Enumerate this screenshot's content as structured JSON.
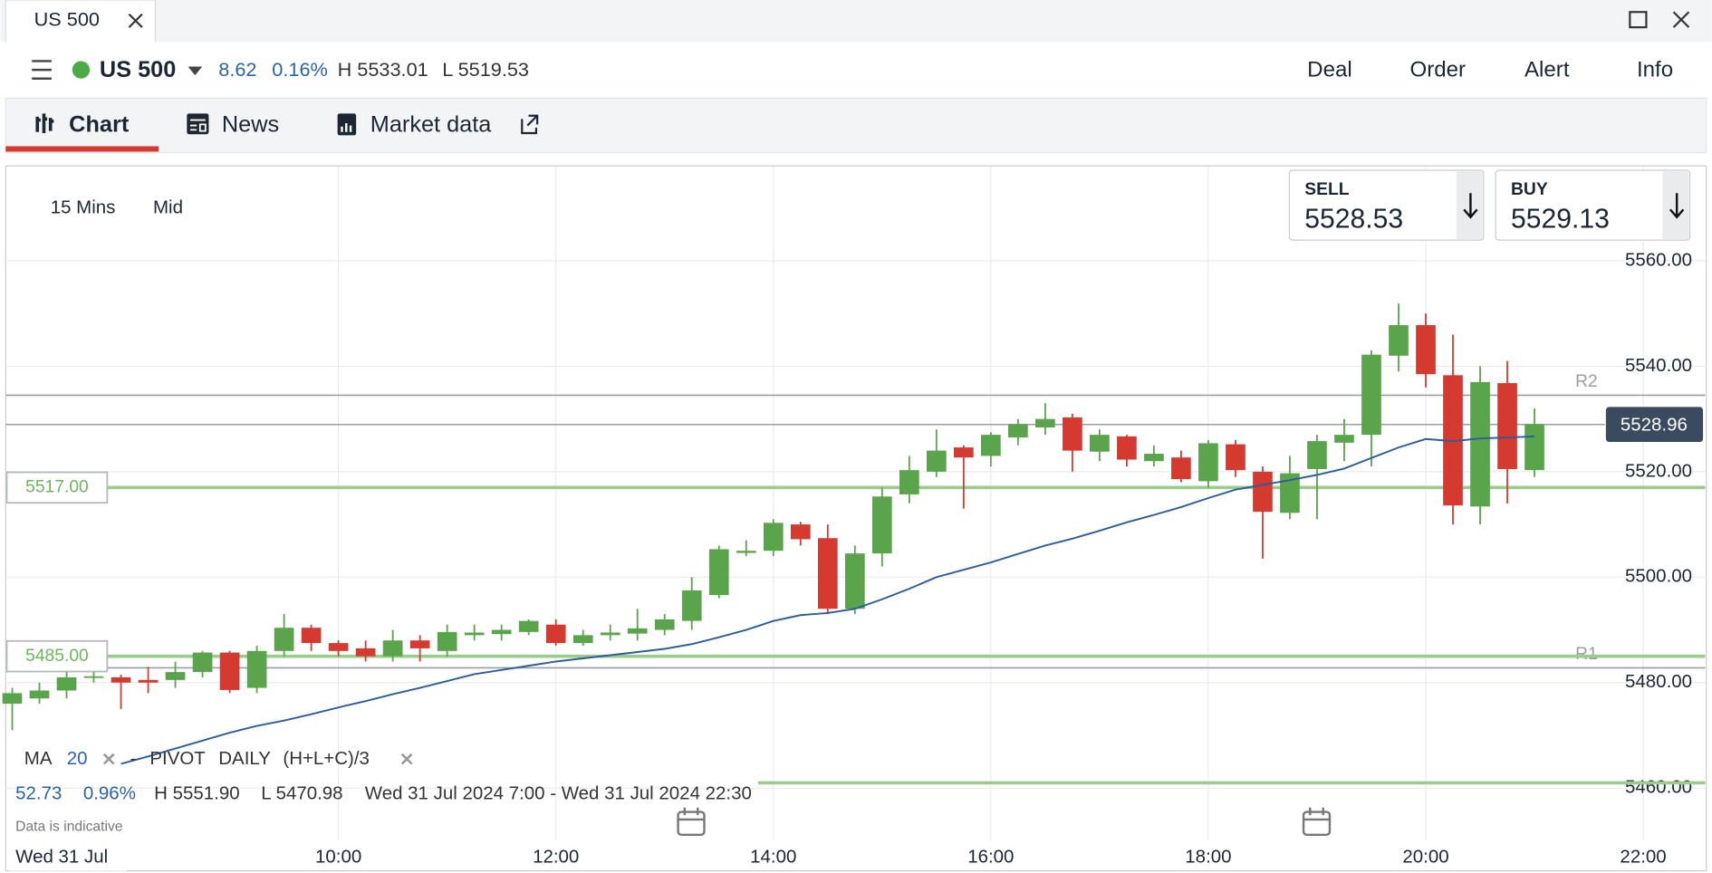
{
  "tab": {
    "title": "US 500"
  },
  "header": {
    "instrument": "US 500",
    "change": "8.62",
    "change_pct": "0.16%",
    "high": "H 5533.01",
    "low": "L 5519.53",
    "actions": [
      "Deal",
      "Order",
      "Alert",
      "Info"
    ]
  },
  "nav": {
    "tabs": [
      "Chart",
      "News",
      "Market data"
    ]
  },
  "toolbar": {
    "interval": "15 Mins",
    "price_type": "Mid"
  },
  "sell": {
    "label": "SELL",
    "price": "5528.53"
  },
  "buy": {
    "label": "BUY",
    "price": "5529.13"
  },
  "indicators": {
    "ma_name": "MA",
    "ma_period": "20",
    "pivot_dash": "-",
    "pivot_name": "PIVOT",
    "pivot_period": "DAILY",
    "pivot_formula": "(H+L+C)/3"
  },
  "summary": {
    "change": "52.73",
    "change_pct": "0.96%",
    "high": "H 5551.90",
    "low": "L 5470.98",
    "range": "Wed 31 Jul 2024 7:00 - Wed 31 Jul 2024 22:30",
    "note": "Data is indicative",
    "date": "Wed 31 Jul"
  },
  "chart_data": {
    "type": "candlestick",
    "x": [
      7,
      7.25,
      7.5,
      7.75,
      8,
      8.25,
      8.5,
      8.75,
      9,
      9.25,
      9.5,
      9.75,
      10,
      10.25,
      10.5,
      10.75,
      11,
      11.25,
      11.5,
      11.75,
      12,
      12.25,
      12.5,
      12.75,
      13,
      13.25,
      13.5,
      13.75,
      14,
      14.25,
      14.5,
      14.75,
      15,
      15.25,
      15.5,
      15.75,
      16,
      16.25,
      16.5,
      16.75,
      17,
      17.25,
      17.5,
      17.75,
      18,
      18.25,
      18.5,
      18.75,
      19,
      19.25,
      19.5,
      19.75,
      20,
      20.25,
      20.5,
      20.75,
      21
    ],
    "open": [
      5476,
      5477,
      5478.5,
      5481,
      5481,
      5480.5,
      5480.5,
      5482,
      5485.7,
      5479,
      5486,
      5490.4,
      5487.5,
      5486.5,
      5485,
      5488,
      5486,
      5489,
      5489.2,
      5489.6,
      5491,
      5487.5,
      5489,
      5489.3,
      5490,
      5491.7,
      5496.6,
      5504.6,
      5505,
      5510,
      5507.4,
      5494,
      5504.5,
      5515.7,
      5520,
      5524.6,
      5523,
      5526.5,
      5528.4,
      5530.3,
      5523.8,
      5526.7,
      5522,
      5522.7,
      5518.2,
      5525.2,
      5520,
      5512.2,
      5520.5,
      5525.5,
      5527,
      5542,
      5547.8,
      5538.3,
      5513.4,
      5536.8,
      5520.3
    ],
    "high": [
      5479,
      5480,
      5482,
      5482,
      5481.5,
      5483,
      5484,
      5486,
      5486,
      5487,
      5493,
      5491,
      5488,
      5488,
      5490,
      5489,
      5491,
      5491,
      5491,
      5492,
      5492,
      5490,
      5491,
      5494,
      5493,
      5500,
      5506,
      5507,
      5511,
      5510.5,
      5510,
      5506,
      5517,
      5523,
      5528,
      5525,
      5527.5,
      5530,
      5533.01,
      5531,
      5528,
      5527,
      5525,
      5524,
      5526,
      5526,
      5521,
      5523,
      5527,
      5530,
      5543,
      5551.9,
      5550,
      5546,
      5540,
      5541,
      5532
    ],
    "low": [
      5470.98,
      5476,
      5477,
      5480,
      5475,
      5478,
      5479,
      5481,
      5478,
      5478,
      5485,
      5486,
      5485,
      5484,
      5484,
      5484,
      5485,
      5488,
      5488,
      5489,
      5487,
      5487,
      5488,
      5488,
      5489,
      5490,
      5496,
      5504,
      5504,
      5506,
      5493,
      5493,
      5502,
      5514,
      5519,
      5513,
      5521,
      5525,
      5527,
      5520,
      5522,
      5521,
      5521,
      5518,
      5517,
      5519,
      5503.5,
      5511,
      5511,
      5522,
      5521,
      5539,
      5536,
      5510,
      5510,
      5514,
      5519
    ],
    "close": [
      5478,
      5478.5,
      5481,
      5481.2,
      5480,
      5480,
      5482,
      5485.7,
      5478.6,
      5486,
      5490.4,
      5487.5,
      5486,
      5485,
      5488,
      5486.5,
      5489.6,
      5489.5,
      5490,
      5491.7,
      5487.5,
      5489,
      5489.5,
      5490.3,
      5492,
      5497.5,
      5505.3,
      5505,
      5510.3,
      5507.2,
      5494,
      5504.5,
      5515.3,
      5520.3,
      5524,
      5522.7,
      5527,
      5529,
      5530,
      5524,
      5527,
      5522.3,
      5523.4,
      5518.6,
      5525.4,
      5520.3,
      5512.4,
      5519.7,
      5525.8,
      5527,
      5542.2,
      5547.8,
      5538.5,
      5513.6,
      5537,
      5520.5,
      5529
    ],
    "up_color": "#5aa44b",
    "down_color": "#d53a31",
    "series": [
      {
        "name": "MA",
        "color": "#2f5d95",
        "values": [
          null,
          null,
          null,
          null,
          5464.6,
          5466,
          5467.5,
          5469,
          5470.5,
          5471.8,
          5472.8,
          5474,
          5475.3,
          5476.5,
          5477.8,
          5479,
          5480.3,
          5481.6,
          5482.4,
          5483.2,
          5484,
          5484.6,
          5485.2,
          5485.8,
          5486.4,
          5487.3,
          5488.6,
          5490,
          5491.7,
          5492.8,
          5493.2,
          5494,
          5495.8,
          5497.8,
          5500,
          5501.4,
          5502.8,
          5504.4,
          5506,
          5507.3,
          5508.8,
          5510.4,
          5511.8,
          5513.3,
          5515,
          5516.6,
          5517.5,
          5518.4,
          5519.4,
          5520.6,
          5522.6,
          5524.6,
          5526.2,
          5525.8,
          5526.3,
          5526.5,
          5526.7
        ]
      }
    ],
    "levels": [
      {
        "label": "R2",
        "value": 5534.5
      },
      {
        "label": "R1",
        "value": 5482.8
      }
    ],
    "alerts": [
      {
        "label": "5517.00",
        "value": 5517
      },
      {
        "label": "5485.00",
        "value": 5485
      }
    ],
    "pivot": {
      "value": 5461,
      "from": 13.86
    },
    "last_price": 5528.96,
    "xlim": [
      6.94,
      22.57
    ],
    "ylim": [
      5450.1,
      5577.8
    ],
    "xticks": [
      {
        "value": 10,
        "label": "10:00"
      },
      {
        "value": 12,
        "label": "12:00"
      },
      {
        "value": 14,
        "label": "14:00"
      },
      {
        "value": 16,
        "label": "16:00"
      },
      {
        "value": 18,
        "label": "18:00"
      },
      {
        "value": 20,
        "label": "20:00"
      },
      {
        "value": 22,
        "label": "22:00"
      }
    ],
    "yticks": [
      {
        "value": 5460,
        "label": "5460.00"
      },
      {
        "value": 5480,
        "label": "5480.00"
      },
      {
        "value": 5500,
        "label": "5500.00"
      },
      {
        "value": 5520,
        "label": "5520.00"
      },
      {
        "value": 5540,
        "label": "5540.00"
      },
      {
        "value": 5560,
        "label": "5560.00"
      }
    ],
    "grid": true
  }
}
